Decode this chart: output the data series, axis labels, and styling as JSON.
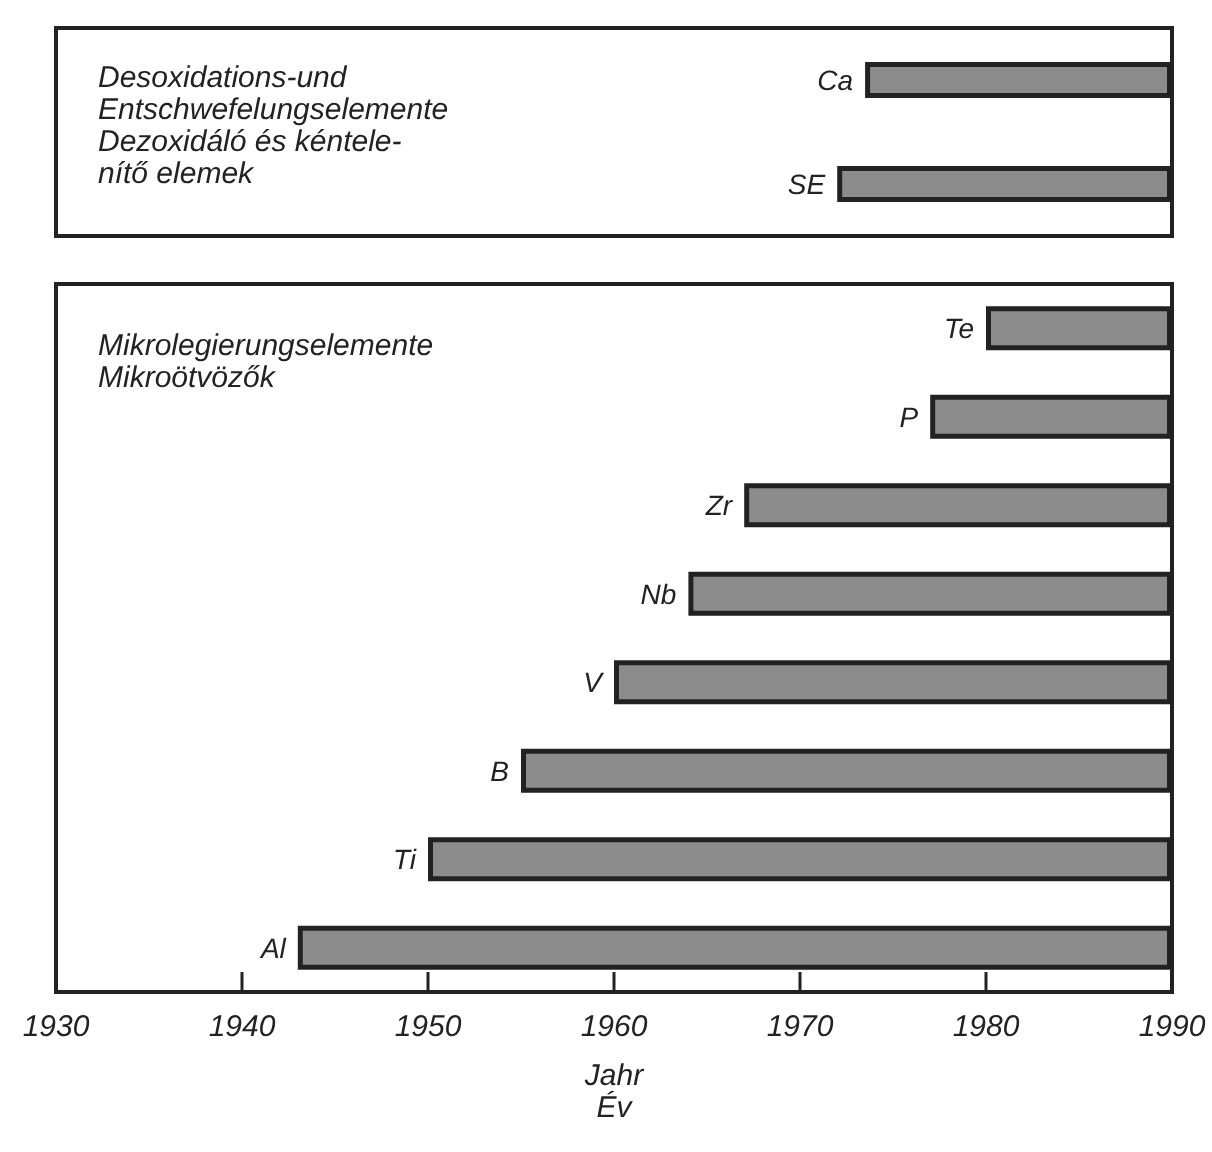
{
  "chart_data": [
    {
      "type": "bar",
      "orientation": "horizontal",
      "title": "Desoxidations-und\nEntschwefelungselemente",
      "subtitle": "Dezoxidáló és kéntele-\nnítő elemek",
      "categories": [
        "Ca",
        "SE"
      ],
      "base": [
        1973.5,
        1972
      ],
      "values": [
        16.5,
        18
      ],
      "color": "#8c8c8c",
      "xlim": [
        1930,
        1990
      ],
      "tick_labels": "y"
    },
    {
      "type": "bar",
      "orientation": "horizontal",
      "title": "Mikrolegierungselemente",
      "subtitle": "Mikroötvözők",
      "xlabel": "Jahr\nÉv",
      "categories": [
        "Te",
        "P",
        "Zr",
        "Nb",
        "V",
        "B",
        "Ti",
        "Al"
      ],
      "base": [
        1980,
        1977,
        1967,
        1964,
        1960,
        1955,
        1950,
        1943
      ],
      "values": [
        10,
        13,
        23,
        26,
        30,
        35,
        40,
        47
      ],
      "color": "#8c8c8c",
      "xlim": [
        1930,
        1990
      ],
      "xticks": [
        1930,
        1940,
        1950,
        1960,
        1970,
        1980,
        1990
      ]
    }
  ]
}
